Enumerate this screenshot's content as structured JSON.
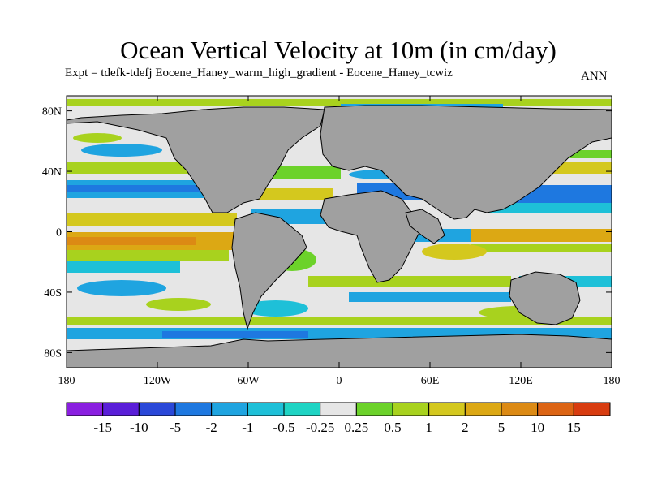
{
  "title": "Ocean Vertical Velocity at 10m (in cm/day)",
  "subtitle": "Expt = tdefk-tdefj Eocene_Haney_warm_high_gradient - Eocene_Haney_tcwiz",
  "season": "ANN",
  "map": {
    "lat_ticks": [
      {
        "value": 80,
        "label": "80N"
      },
      {
        "value": 40,
        "label": "40N"
      },
      {
        "value": 0,
        "label": "0"
      },
      {
        "value": -40,
        "label": "40S"
      },
      {
        "value": -80,
        "label": "80S"
      }
    ],
    "lon_ticks": [
      {
        "value": -180,
        "label": "180"
      },
      {
        "value": -120,
        "label": "120W"
      },
      {
        "value": -60,
        "label": "60W"
      },
      {
        "value": 0,
        "label": "0"
      },
      {
        "value": 60,
        "label": "60E"
      },
      {
        "value": 120,
        "label": "120E"
      },
      {
        "value": 180,
        "label": "180"
      }
    ],
    "land_color": "#a0a0a0",
    "ocean_background": "#e6e6e6"
  },
  "colorbar": {
    "colors": [
      "#8a1fe0",
      "#5a1ed8",
      "#2a48d8",
      "#1e78e0",
      "#1fa4e0",
      "#1ec0d8",
      "#1fd4c4",
      "#e6e6e6",
      "#6cd22a",
      "#a8d21e",
      "#d4c81e",
      "#dca814",
      "#dc8a14",
      "#dc6414",
      "#d83c10"
    ],
    "labels": [
      "-15",
      "-10",
      "-5",
      "-2",
      "-1",
      "-0.5",
      "-0.25",
      "0.25",
      "0.5",
      "1",
      "2",
      "5",
      "10",
      "15"
    ]
  }
}
